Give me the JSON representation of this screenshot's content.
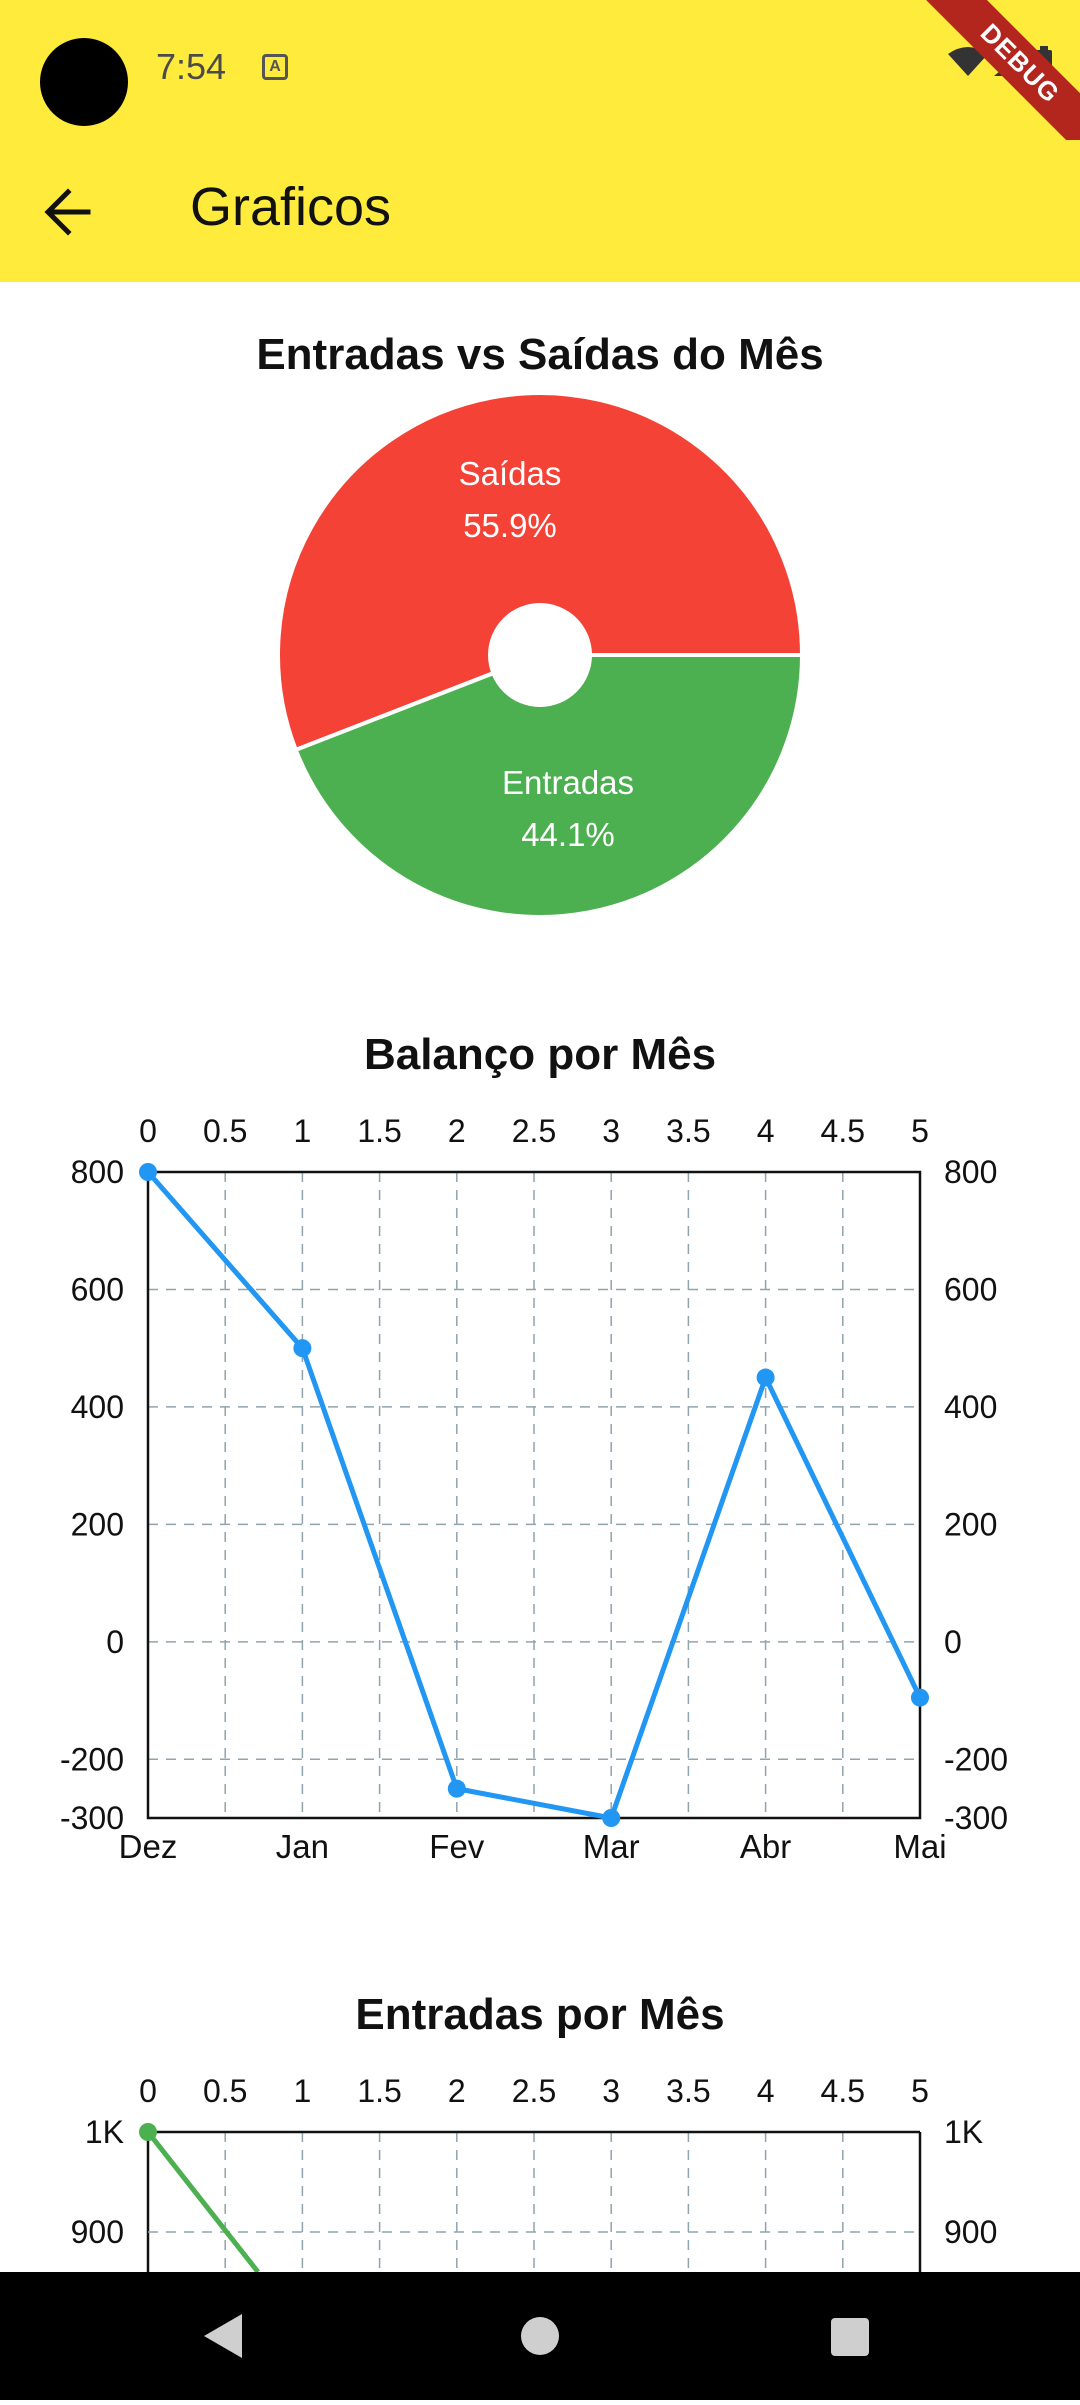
{
  "status_bar": {
    "time": "7:54",
    "notif_icon": "A",
    "debug_label": "DEBUG"
  },
  "app_bar": {
    "title": "Graficos",
    "back_icon": "arrow-left-icon"
  },
  "colors": {
    "accent": "#FFEB3B",
    "exits": "#F44336",
    "entries": "#4CAF50",
    "balance_line": "#2196F3",
    "entries_line": "#4CAF50"
  },
  "pie": {
    "title": "Entradas vs Saídas do Mês",
    "exits_label": "Saídas",
    "exits_pct": "55.9%",
    "entries_label": "Entradas",
    "entries_pct": "44.1%"
  },
  "balance": {
    "title": "Balanço por Mês"
  },
  "entries_chart": {
    "title": "Entradas por Mês"
  },
  "chart_data": [
    {
      "type": "pie",
      "title": "Entradas vs Saídas do Mês",
      "categories": [
        "Saídas",
        "Entradas"
      ],
      "values": [
        55.9,
        44.1
      ]
    },
    {
      "type": "line",
      "title": "Balanço por Mês",
      "categories": [
        "Dez",
        "Jan",
        "Fev",
        "Mar",
        "Abr",
        "Mai"
      ],
      "x": [
        0,
        1,
        2,
        3,
        4,
        5
      ],
      "values": [
        800,
        500,
        -250,
        -300,
        450,
        -95
      ],
      "x_top_ticks": [
        "0",
        "0.5",
        "1",
        "1.5",
        "2",
        "2.5",
        "3",
        "3.5",
        "4",
        "4.5",
        "5"
      ],
      "y_ticks": [
        "800",
        "600",
        "400",
        "200",
        "0",
        "-200",
        "-300"
      ],
      "ylim": [
        -300,
        800
      ],
      "grid": true
    },
    {
      "type": "line",
      "title": "Entradas por Mês",
      "x_top_ticks": [
        "0",
        "0.5",
        "1",
        "1.5",
        "2",
        "2.5",
        "3",
        "3.5",
        "4",
        "4.5",
        "5"
      ],
      "y_ticks": [
        "1K",
        "900"
      ],
      "first_value": 1000,
      "grid": true
    }
  ]
}
